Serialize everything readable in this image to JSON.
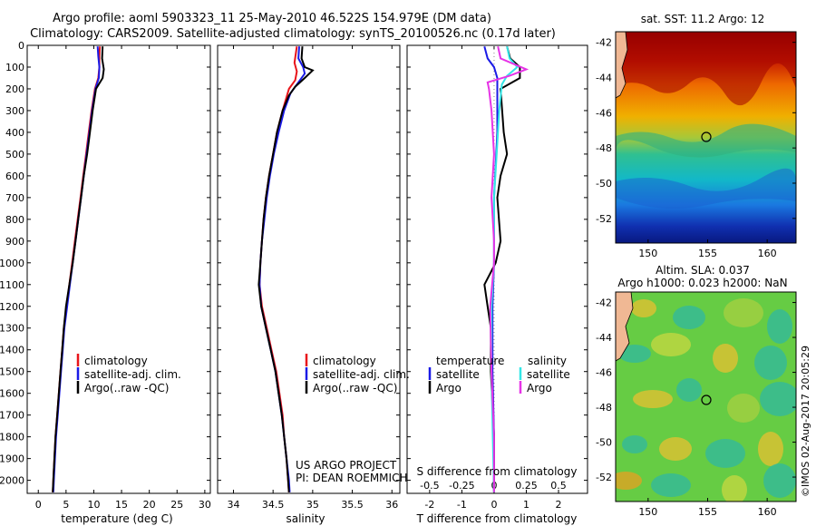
{
  "header": {
    "line1": "Argo profile: aoml 5903323_11 25-May-2010 46.522S 154.979E (DM data)",
    "line2": "Climatology: CARS2009. Satellite-adjusted climatology: synTS_20100526.nc (0.17d later)"
  },
  "colors": {
    "climatology": "#e8141a",
    "satellite": "#1a1ae6",
    "argo": "#000000",
    "sal_satellite": "#33e6e6",
    "sal_argo": "#e633e6"
  },
  "chart_data": [
    {
      "id": "temperature",
      "type": "line",
      "xlabel": "temperature (deg C)",
      "ylabel": "",
      "xlim": [
        -2,
        31
      ],
      "ylim": [
        2060,
        0
      ],
      "xticks": [
        "0",
        "5",
        "10",
        "15",
        "20",
        "25",
        "30"
      ],
      "yticks": [
        "0",
        "100",
        "200",
        "300",
        "400",
        "500",
        "600",
        "700",
        "800",
        "900",
        "1000",
        "1100",
        "1200",
        "1300",
        "1400",
        "1500",
        "1600",
        "1700",
        "1800",
        "1900",
        "2000"
      ],
      "legend": [
        "climatology",
        "satellite-adj. clim.",
        "Argo(..raw -QC)"
      ],
      "series": [
        {
          "name": "climatology",
          "points": [
            [
              11.1,
              5
            ],
            [
              11.0,
              50
            ],
            [
              11.0,
              100
            ],
            [
              10.8,
              150
            ],
            [
              10.2,
              200
            ],
            [
              9.6,
              300
            ],
            [
              9.1,
              400
            ],
            [
              8.6,
              500
            ],
            [
              8.1,
              600
            ],
            [
              7.6,
              700
            ],
            [
              7.1,
              800
            ],
            [
              6.6,
              900
            ],
            [
              6.1,
              1000
            ],
            [
              5.6,
              1100
            ],
            [
              5.1,
              1200
            ],
            [
              4.6,
              1300
            ],
            [
              4.3,
              1400
            ],
            [
              4.0,
              1500
            ],
            [
              3.7,
              1600
            ],
            [
              3.4,
              1700
            ],
            [
              3.1,
              1800
            ],
            [
              2.9,
              1900
            ],
            [
              2.7,
              2000
            ],
            [
              2.6,
              2055
            ]
          ]
        },
        {
          "name": "satellite-adj. clim.",
          "points": [
            [
              10.7,
              5
            ],
            [
              10.8,
              50
            ],
            [
              11.0,
              100
            ],
            [
              10.9,
              150
            ],
            [
              10.3,
              200
            ],
            [
              9.7,
              300
            ],
            [
              9.2,
              400
            ],
            [
              8.7,
              500
            ],
            [
              8.2,
              600
            ],
            [
              7.7,
              700
            ],
            [
              7.2,
              800
            ],
            [
              6.7,
              900
            ],
            [
              6.2,
              1000
            ],
            [
              5.7,
              1100
            ],
            [
              5.2,
              1200
            ],
            [
              4.7,
              1300
            ],
            [
              4.4,
              1400
            ],
            [
              4.1,
              1500
            ],
            [
              3.8,
              1600
            ],
            [
              3.5,
              1700
            ],
            [
              3.2,
              1800
            ],
            [
              3.0,
              1900
            ],
            [
              2.8,
              2000
            ],
            [
              2.7,
              2055
            ]
          ]
        },
        {
          "name": "Argo(..raw -QC)",
          "points": [
            [
              11.6,
              5
            ],
            [
              11.5,
              60
            ],
            [
              11.8,
              110
            ],
            [
              11.6,
              150
            ],
            [
              10.4,
              200
            ],
            [
              9.8,
              300
            ],
            [
              9.3,
              400
            ],
            [
              8.8,
              500
            ],
            [
              8.2,
              600
            ],
            [
              7.7,
              700
            ],
            [
              7.2,
              800
            ],
            [
              6.7,
              900
            ],
            [
              6.2,
              1000
            ],
            [
              5.6,
              1100
            ],
            [
              5.0,
              1200
            ],
            [
              4.6,
              1300
            ],
            [
              4.3,
              1400
            ],
            [
              4.0,
              1500
            ],
            [
              3.7,
              1600
            ],
            [
              3.4,
              1700
            ],
            [
              3.1,
              1800
            ],
            [
              2.9,
              1900
            ],
            [
              2.7,
              2000
            ],
            [
              2.6,
              2055
            ]
          ]
        }
      ]
    },
    {
      "id": "salinity",
      "type": "line",
      "xlabel": "salinity",
      "xlim": [
        33.8,
        36.1
      ],
      "ylim": [
        2060,
        0
      ],
      "xticks": [
        "34",
        "34.5",
        "35",
        "35.5",
        "36"
      ],
      "legend": [
        "climatology",
        "satellite-adj. clim.",
        "Argo(..raw -QC)"
      ],
      "annotation": [
        "US ARGO PROJECT",
        "PI: DEAN ROEMMICH"
      ],
      "series": [
        {
          "name": "climatology",
          "points": [
            [
              34.8,
              5
            ],
            [
              34.77,
              80
            ],
            [
              34.8,
              120
            ],
            [
              34.78,
              160
            ],
            [
              34.7,
              200
            ],
            [
              34.62,
              300
            ],
            [
              34.55,
              400
            ],
            [
              34.5,
              500
            ],
            [
              34.45,
              600
            ],
            [
              34.41,
              700
            ],
            [
              34.38,
              800
            ],
            [
              34.36,
              900
            ],
            [
              34.34,
              1000
            ],
            [
              34.33,
              1100
            ],
            [
              34.36,
              1200
            ],
            [
              34.42,
              1300
            ],
            [
              34.48,
              1400
            ],
            [
              34.54,
              1500
            ],
            [
              34.58,
              1600
            ],
            [
              34.62,
              1700
            ],
            [
              34.64,
              1800
            ],
            [
              34.67,
              1900
            ],
            [
              34.69,
              2000
            ],
            [
              34.7,
              2055
            ]
          ]
        },
        {
          "name": "satellite-adj. clim.",
          "points": [
            [
              34.83,
              5
            ],
            [
              34.82,
              60
            ],
            [
              34.88,
              100
            ],
            [
              34.9,
              130
            ],
            [
              34.82,
              170
            ],
            [
              34.72,
              220
            ],
            [
              34.64,
              300
            ],
            [
              34.57,
              400
            ],
            [
              34.51,
              500
            ],
            [
              34.46,
              600
            ],
            [
              34.42,
              700
            ],
            [
              34.39,
              800
            ],
            [
              34.36,
              900
            ],
            [
              34.34,
              1000
            ],
            [
              34.33,
              1100
            ],
            [
              34.35,
              1200
            ],
            [
              34.41,
              1300
            ],
            [
              34.47,
              1400
            ],
            [
              34.53,
              1500
            ],
            [
              34.57,
              1600
            ],
            [
              34.61,
              1700
            ],
            [
              34.64,
              1800
            ],
            [
              34.67,
              1900
            ],
            [
              34.7,
              2000
            ],
            [
              34.71,
              2055
            ]
          ]
        },
        {
          "name": "Argo(..raw -QC)",
          "points": [
            [
              34.87,
              5
            ],
            [
              34.86,
              60
            ],
            [
              34.9,
              100
            ],
            [
              35.0,
              115
            ],
            [
              34.9,
              150
            ],
            [
              34.78,
              190
            ],
            [
              34.7,
              230
            ],
            [
              34.62,
              300
            ],
            [
              34.55,
              400
            ],
            [
              34.5,
              500
            ],
            [
              34.45,
              600
            ],
            [
              34.41,
              700
            ],
            [
              34.38,
              800
            ],
            [
              34.36,
              900
            ],
            [
              34.34,
              1000
            ],
            [
              34.32,
              1100
            ],
            [
              34.35,
              1200
            ],
            [
              34.41,
              1300
            ],
            [
              34.47,
              1400
            ],
            [
              34.53,
              1500
            ],
            [
              34.57,
              1600
            ],
            [
              34.61,
              1700
            ],
            [
              34.64,
              1800
            ],
            [
              34.67,
              1900
            ],
            [
              34.69,
              2000
            ],
            [
              34.7,
              2055
            ]
          ]
        }
      ]
    },
    {
      "id": "differences",
      "type": "line",
      "xlabel": "T difference from climatology",
      "x2label": "S difference from climatology",
      "xlim": [
        -2.7,
        2.9
      ],
      "ylim": [
        2060,
        0
      ],
      "xticks": [
        "-2",
        "-1",
        "0",
        "1",
        "2"
      ],
      "x2ticks": [
        "-0.5",
        "-0.25",
        "0",
        "0.25",
        "0.5"
      ],
      "legend": {
        "temperature_title": "temperature",
        "salinity_title": "salinity",
        "satellite": "satellite",
        "argo": "Argo"
      },
      "series": [
        {
          "name": "T satellite",
          "points": [
            [
              -0.3,
              5
            ],
            [
              -0.2,
              60
            ],
            [
              0.0,
              100
            ],
            [
              0.1,
              150
            ],
            [
              0.1,
              200
            ],
            [
              0.1,
              400
            ],
            [
              0.0,
              700
            ],
            [
              0.0,
              1000
            ],
            [
              -0.05,
              1200
            ],
            [
              -0.05,
              1500
            ],
            [
              0.0,
              1800
            ],
            [
              0.0,
              2055
            ]
          ]
        },
        {
          "name": "T Argo",
          "points": [
            [
              0.4,
              5
            ],
            [
              0.5,
              60
            ],
            [
              0.8,
              100
            ],
            [
              0.8,
              150
            ],
            [
              0.2,
              200
            ],
            [
              0.3,
              400
            ],
            [
              0.4,
              500
            ],
            [
              0.2,
              600
            ],
            [
              0.1,
              700
            ],
            [
              0.2,
              900
            ],
            [
              0.05,
              1000
            ],
            [
              -0.3,
              1100
            ],
            [
              -0.2,
              1200
            ],
            [
              -0.1,
              1300
            ],
            [
              -0.1,
              1500
            ],
            [
              0.0,
              1800
            ],
            [
              0.0,
              2055
            ]
          ]
        },
        {
          "name": "S satellite",
          "points": [
            [
              0.1,
              5
            ],
            [
              0.12,
              60
            ],
            [
              0.18,
              100
            ],
            [
              0.1,
              140
            ],
            [
              0.06,
              180
            ],
            [
              0.04,
              300
            ],
            [
              0.02,
              500
            ],
            [
              0.0,
              700
            ],
            [
              0.0,
              1000
            ],
            [
              -0.02,
              1200
            ],
            [
              -0.02,
              1500
            ],
            [
              -0.01,
              1800
            ],
            [
              0.0,
              2055
            ]
          ]
        },
        {
          "name": "S Argo",
          "points": [
            [
              0.03,
              5
            ],
            [
              0.05,
              60
            ],
            [
              0.25,
              110
            ],
            [
              0.12,
              140
            ],
            [
              -0.05,
              170
            ],
            [
              -0.04,
              200
            ],
            [
              -0.02,
              300
            ],
            [
              0.0,
              500
            ],
            [
              -0.02,
              700
            ],
            [
              0.0,
              900
            ],
            [
              0.0,
              1000
            ],
            [
              -0.03,
              1200
            ],
            [
              -0.02,
              1500
            ],
            [
              0.0,
              1800
            ],
            [
              0.0,
              2055
            ]
          ]
        }
      ]
    }
  ],
  "maps": {
    "sst": {
      "title": "sat. SST: 11.2 Argo: 12",
      "yticks": [
        "-42",
        "-44",
        "-46",
        "-48",
        "-50",
        "-52"
      ],
      "xticks": [
        "150",
        "155",
        "160"
      ]
    },
    "sla": {
      "title1": "Altim. SLA: 0.037",
      "title2": "Argo h1000: 0.023 h2000: NaN",
      "yticks": [
        "-42",
        "-44",
        "-46",
        "-48",
        "-50",
        "-52"
      ],
      "xticks": [
        "150",
        "155",
        "160"
      ],
      "credit": "©IMOS 02-Aug-2017 20:05:29"
    }
  }
}
